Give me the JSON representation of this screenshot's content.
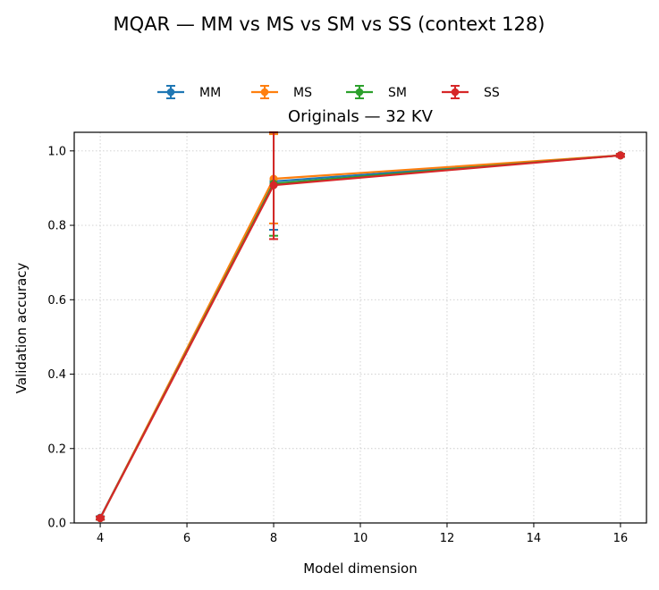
{
  "figure": {
    "suptitle": "MQAR — MM vs MS vs SM vs SS (context 128)"
  },
  "chart_data": {
    "type": "line",
    "title": "Originals — 32 KV",
    "xlabel": "Model dimension",
    "ylabel": "Validation accuracy",
    "xlim": [
      3.4,
      16.6
    ],
    "ylim": [
      0.0,
      1.05
    ],
    "xticks": [
      4,
      6,
      8,
      10,
      12,
      14,
      16
    ],
    "yticks": [
      0.0,
      0.2,
      0.4,
      0.6,
      0.8,
      1.0
    ],
    "xtick_labels": [
      "4",
      "6",
      "8",
      "10",
      "12",
      "14",
      "16"
    ],
    "ytick_labels": [
      "0.0",
      "0.2",
      "0.4",
      "0.6",
      "0.8",
      "1.0"
    ],
    "grid": true,
    "legend_placement": "top-center, above plot",
    "series": [
      {
        "name": "MM",
        "color": "#1f77b4",
        "points": [
          {
            "x": 4,
            "y": 0.014,
            "err": 0.004
          },
          {
            "x": 8,
            "y": 0.918,
            "err": 0.13
          },
          {
            "x": 16,
            "y": 0.988,
            "err": 0.004
          }
        ]
      },
      {
        "name": "MS",
        "color": "#ff7f0e",
        "points": [
          {
            "x": 4,
            "y": 0.013,
            "err": 0.004
          },
          {
            "x": 8,
            "y": 0.925,
            "err": 0.12
          },
          {
            "x": 16,
            "y": 0.988,
            "err": 0.004
          }
        ]
      },
      {
        "name": "SM",
        "color": "#2ca02c",
        "points": [
          {
            "x": 4,
            "y": 0.013,
            "err": 0.004
          },
          {
            "x": 8,
            "y": 0.912,
            "err": 0.14
          },
          {
            "x": 16,
            "y": 0.988,
            "err": 0.004
          }
        ]
      },
      {
        "name": "SS",
        "color": "#d62728",
        "points": [
          {
            "x": 4,
            "y": 0.013,
            "err": 0.004
          },
          {
            "x": 8,
            "y": 0.908,
            "err": 0.145
          },
          {
            "x": 16,
            "y": 0.988,
            "err": 0.004
          }
        ]
      }
    ]
  }
}
